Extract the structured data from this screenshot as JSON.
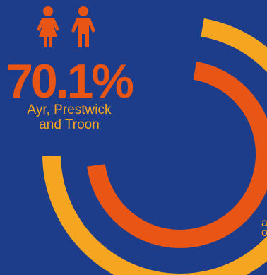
{
  "colors": {
    "background": "#1d3d8a",
    "primary_ring": "#e85514",
    "secondary_ring": "#f6a521"
  },
  "icons": [
    "female-person-icon",
    "male-person-icon"
  ],
  "headline": {
    "percent_text": "70.1%",
    "area_line1": "Ayr, Prestwick",
    "area_line2": "and Troon"
  },
  "edge_label": {
    "line1": "a",
    "line2": "o"
  },
  "chart_data": {
    "type": "pie",
    "subtype": "concentric-arcs",
    "series": [
      {
        "label": "Ayr, Prestwick and Troon",
        "value": 70.1,
        "color": "#e85514"
      },
      {
        "value": 72.0,
        "color": "#f6a521"
      }
    ],
    "max": 100
  }
}
